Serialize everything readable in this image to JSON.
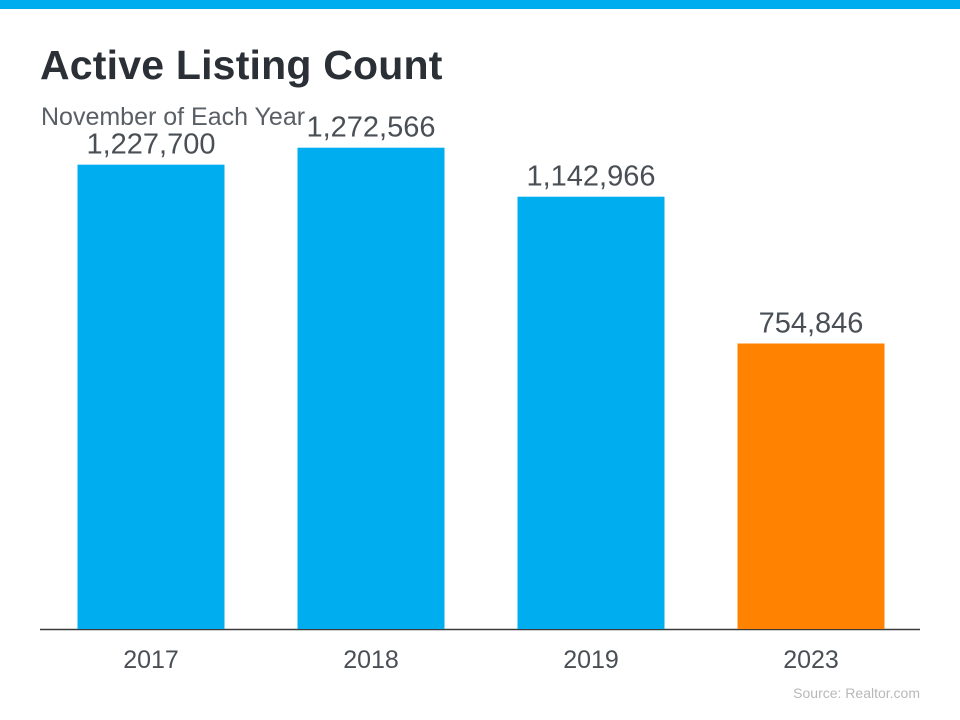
{
  "header": {
    "title": "Active Listing Count",
    "subtitle": "November of Each Year"
  },
  "footer": {
    "source": "Source: Realtor.com"
  },
  "colors": {
    "accent_bar": "#00adef",
    "bar_default": "#00adef",
    "bar_highlight": "#ff8200",
    "label_text": "#4a4f56"
  },
  "chart_data": {
    "type": "bar",
    "title": "Active Listing Count",
    "subtitle": "November of Each Year",
    "categories": [
      "2017",
      "2018",
      "2019",
      "2023"
    ],
    "values": [
      1227700,
      1272566,
      1142966,
      754846
    ],
    "value_labels": [
      "1,227,700",
      "1,272,566",
      "1,142,966",
      "754,846"
    ],
    "highlight_index": 3,
    "xlabel": "",
    "ylabel": "",
    "ylim": [
      0,
      1515000
    ],
    "grid": false,
    "legend": "none"
  }
}
